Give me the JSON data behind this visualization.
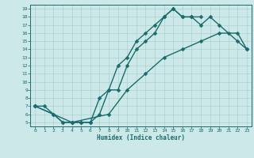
{
  "xlabel": "Humidex (Indice chaleur)",
  "bg_color": "#cce8e8",
  "grid_color": "#aad0d0",
  "line_color": "#1a6b6b",
  "markersize": 2.5,
  "linewidth": 1.0,
  "xlim": [
    -0.5,
    23.5
  ],
  "ylim": [
    4.5,
    19.5
  ],
  "xticks": [
    0,
    1,
    2,
    3,
    4,
    5,
    6,
    7,
    8,
    9,
    10,
    11,
    12,
    13,
    14,
    15,
    16,
    17,
    18,
    19,
    20,
    21,
    22,
    23
  ],
  "yticks": [
    5,
    6,
    7,
    8,
    9,
    10,
    11,
    12,
    13,
    14,
    15,
    16,
    17,
    18,
    19
  ],
  "curve1_x": [
    0,
    1,
    2,
    3,
    4,
    5,
    6,
    7,
    8,
    9,
    10,
    11,
    12,
    13,
    14,
    15,
    16,
    17,
    18
  ],
  "curve1_y": [
    7,
    7,
    6,
    5,
    5,
    5,
    5,
    6,
    9,
    9,
    12,
    14,
    15,
    16,
    18,
    19,
    18,
    18,
    18
  ],
  "curve2_x": [
    0,
    2,
    3,
    4,
    5,
    6,
    7,
    8,
    9,
    10,
    11,
    12,
    13,
    14,
    15,
    16,
    17,
    18,
    19,
    20,
    21,
    22,
    23
  ],
  "curve2_y": [
    7,
    6,
    5,
    5,
    5,
    5,
    8,
    9,
    12,
    13,
    15,
    16,
    17,
    18,
    19,
    18,
    18,
    17,
    18,
    17,
    16,
    15,
    14
  ],
  "curve3_x": [
    0,
    4,
    8,
    10,
    12,
    14,
    16,
    18,
    20,
    22,
    23
  ],
  "curve3_y": [
    7,
    5,
    6,
    9,
    11,
    13,
    14,
    15,
    16,
    16,
    14
  ]
}
